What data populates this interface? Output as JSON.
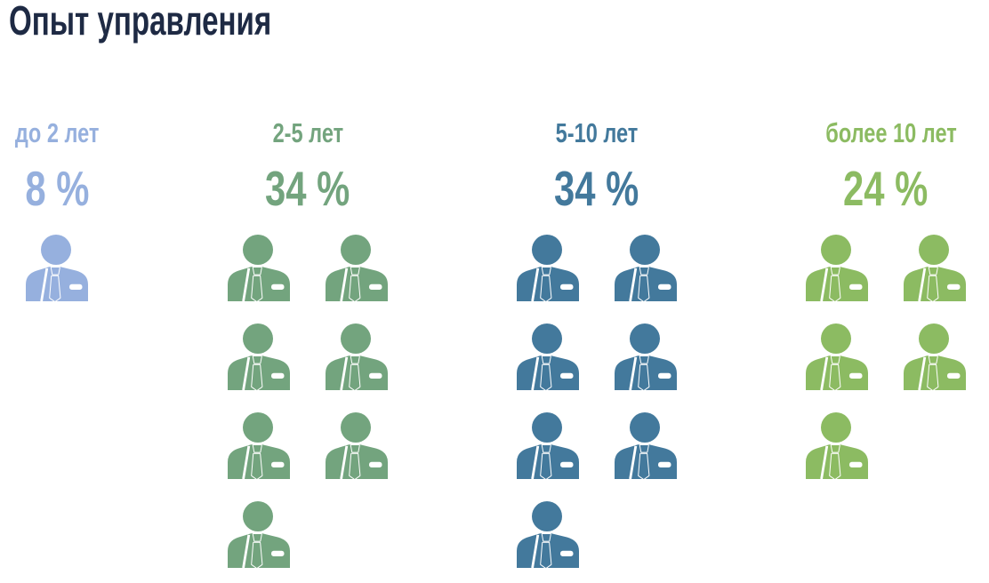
{
  "title": "Опыт управления",
  "chart_data": {
    "type": "pictogram",
    "title": "Опыт управления",
    "categories": [
      "до 2 лет",
      "2-5 лет",
      "5-10 лет",
      "более 10 лет"
    ],
    "values": [
      8,
      34,
      34,
      24
    ],
    "unit": "%",
    "icon_counts": [
      1,
      7,
      7,
      5
    ],
    "icon": "businessman-icon",
    "colors": [
      "#96b0de",
      "#73a47e",
      "#43799c",
      "#8cbb62"
    ],
    "title_color": "#1e2a44",
    "grid": false,
    "legend_position": "none"
  },
  "columns": [
    {
      "label": "до 2 лет",
      "percent": "8 %",
      "value": 8,
      "icons": 1,
      "color": "#96b0de"
    },
    {
      "label": "2-5 лет",
      "percent": "34 %",
      "value": 34,
      "icons": 7,
      "color": "#73a47e"
    },
    {
      "label": "5-10 лет",
      "percent": "34 %",
      "value": 34,
      "icons": 7,
      "color": "#43799c"
    },
    {
      "label": "более 10 лет",
      "percent": "24 %",
      "value": 24,
      "icons": 5,
      "color": "#8cbb62"
    }
  ]
}
